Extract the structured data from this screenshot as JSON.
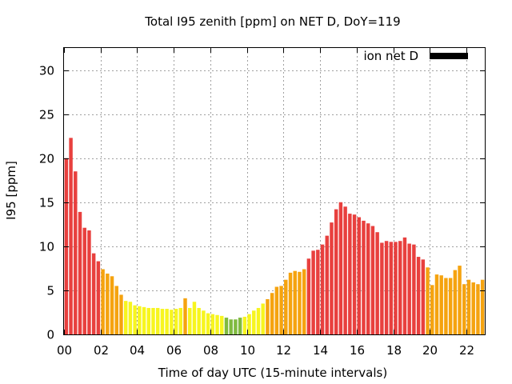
{
  "chart_data": {
    "type": "bar",
    "title": "Total I95 zenith [ppm] on NET D, DoY=119",
    "xlabel": "Time of day UTC (15-minute intervals)",
    "ylabel": "I95 [ppm]",
    "xlim": [
      0,
      23
    ],
    "ylim": [
      0,
      32.5
    ],
    "x_ticks": [
      "00",
      "02",
      "04",
      "06",
      "08",
      "10",
      "12",
      "14",
      "16",
      "18",
      "20",
      "22"
    ],
    "y_ticks": [
      "0",
      "5",
      "10",
      "15",
      "20",
      "25",
      "30"
    ],
    "grid": true,
    "legend_position": "top-right",
    "legend": [
      {
        "label": "ion net D",
        "color": "#000000"
      }
    ],
    "color_scale": {
      "red": "#e8403e",
      "orange": "#f5a30f",
      "yellow": "#f7f51f",
      "green": "#7fba3f"
    },
    "series": [
      {
        "values": [
          20.0,
          22.3,
          18.5,
          13.9,
          12.1,
          11.8,
          9.2,
          8.3,
          7.4,
          6.9,
          6.6,
          5.5,
          4.5,
          3.8,
          3.7,
          3.3,
          3.2,
          3.1,
          3.0,
          3.0,
          3.0,
          2.9,
          2.9,
          2.8,
          2.9,
          3.0,
          4.1,
          3.0,
          3.7,
          3.0,
          2.7,
          2.4,
          2.3,
          2.2,
          2.1,
          1.9,
          1.7,
          1.7,
          1.9,
          2.0,
          2.3,
          2.7,
          3.0,
          3.5,
          4.0,
          4.7,
          5.4,
          5.5,
          6.2,
          7.0,
          7.2,
          7.1,
          7.4,
          8.6,
          9.5,
          9.6,
          10.2,
          11.2,
          12.7,
          14.2,
          15.0,
          14.5,
          13.7,
          13.6,
          13.3,
          12.9,
          12.6,
          12.3,
          11.6,
          10.4,
          10.6,
          10.5,
          10.5,
          10.6,
          11.0,
          10.3,
          10.2,
          8.8,
          8.5,
          7.6,
          5.6,
          6.8,
          6.7,
          6.4,
          6.4,
          7.3,
          7.8,
          5.7,
          6.2,
          5.9,
          5.7,
          6.2
        ],
        "colors": [
          "red",
          "red",
          "red",
          "red",
          "red",
          "red",
          "red",
          "red",
          "orange",
          "orange",
          "orange",
          "orange",
          "orange",
          "yellow",
          "yellow",
          "yellow",
          "yellow",
          "yellow",
          "yellow",
          "yellow",
          "yellow",
          "yellow",
          "yellow",
          "yellow",
          "yellow",
          "yellow",
          "orange",
          "yellow",
          "yellow",
          "yellow",
          "yellow",
          "yellow",
          "yellow",
          "yellow",
          "yellow",
          "green",
          "green",
          "green",
          "green",
          "yellow",
          "yellow",
          "yellow",
          "yellow",
          "yellow",
          "orange",
          "orange",
          "orange",
          "orange",
          "orange",
          "orange",
          "orange",
          "orange",
          "orange",
          "red",
          "red",
          "red",
          "red",
          "red",
          "red",
          "red",
          "red",
          "red",
          "red",
          "red",
          "red",
          "red",
          "red",
          "red",
          "red",
          "red",
          "red",
          "red",
          "red",
          "red",
          "red",
          "red",
          "red",
          "red",
          "red",
          "orange",
          "orange",
          "orange",
          "orange",
          "orange",
          "orange",
          "orange",
          "orange",
          "orange",
          "orange",
          "orange",
          "orange",
          "orange"
        ]
      }
    ]
  }
}
